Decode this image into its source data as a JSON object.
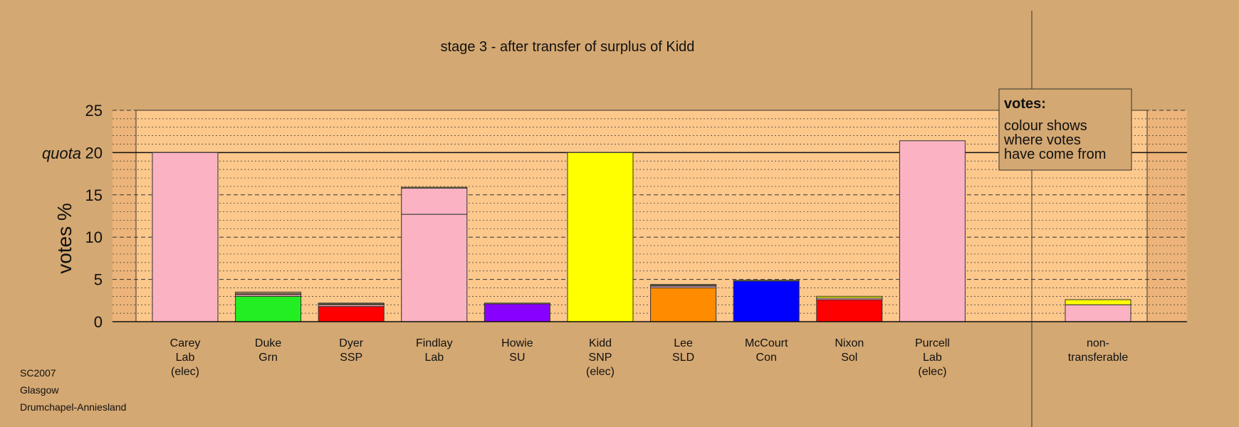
{
  "chart_data": {
    "type": "bar",
    "title": "stage 3 - after transfer of surplus of Kidd",
    "ylabel": "votes %",
    "ylim": [
      0,
      25
    ],
    "yticks": [
      0,
      5,
      10,
      15,
      20,
      25
    ],
    "quota": 20,
    "quota_label": "quota",
    "grid": "dashed every 5, dotted every 1",
    "legend_placement": "top-right",
    "candidates": [
      {
        "label": [
          "Carey",
          "Lab",
          "(elec)"
        ],
        "segments": [
          {
            "from": "Lab",
            "color": "#fbb3c3",
            "value": 20.0
          }
        ]
      },
      {
        "label": [
          "Duke",
          "Grn"
        ],
        "segments": [
          {
            "from": "Grn",
            "color": "#22ee22",
            "value": 3.0
          },
          {
            "from": "Lab",
            "color": "#fbb3c3",
            "value": 0.2
          },
          {
            "from": "SNP",
            "color": "#ffff00",
            "value": 0.1
          },
          {
            "from": "other",
            "color": "#c8a070",
            "value": 0.2
          }
        ]
      },
      {
        "label": [
          "Dyer",
          "SSP"
        ],
        "segments": [
          {
            "from": "SSP",
            "color": "#ff0000",
            "value": 1.8
          },
          {
            "from": "Lab",
            "color": "#fbb3c3",
            "value": 0.2
          },
          {
            "from": "SNP",
            "color": "#ffff00",
            "value": 0.1
          },
          {
            "from": "other",
            "color": "#c8a070",
            "value": 0.1
          }
        ]
      },
      {
        "label": [
          "Findlay",
          "Lab"
        ],
        "segments": [
          {
            "from": "Lab",
            "color": "#fbb3c3",
            "value": 12.7
          },
          {
            "from": "Lab transfer",
            "color": "#fbb3c3",
            "value": 3.1
          },
          {
            "from": "SNP",
            "color": "#ffff00",
            "value": 0.1
          }
        ]
      },
      {
        "label": [
          "Howie",
          "SU"
        ],
        "segments": [
          {
            "from": "SU",
            "color": "#8800ff",
            "value": 2.1
          },
          {
            "from": "SNP",
            "color": "#ffff00",
            "value": 0.1
          }
        ]
      },
      {
        "label": [
          "Kidd",
          "SNP",
          "(elec)"
        ],
        "segments": [
          {
            "from": "SNP",
            "color": "#ffff00",
            "value": 20.0
          }
        ]
      },
      {
        "label": [
          "Lee",
          "SLD"
        ],
        "segments": [
          {
            "from": "SLD",
            "color": "#ff8c00",
            "value": 4.0
          },
          {
            "from": "Lab",
            "color": "#fbb3c3",
            "value": 0.2
          },
          {
            "from": "SNP",
            "color": "#ffff00",
            "value": 0.1
          },
          {
            "from": "other",
            "color": "#c8a070",
            "value": 0.1
          }
        ]
      },
      {
        "label": [
          "McCourt",
          "Con"
        ],
        "segments": [
          {
            "from": "Con",
            "color": "#0000ff",
            "value": 4.8
          },
          {
            "from": "SNP",
            "color": "#ffff00",
            "value": 0.1
          }
        ]
      },
      {
        "label": [
          "Nixon",
          "Sol"
        ],
        "segments": [
          {
            "from": "Sol",
            "color": "#ff0000",
            "value": 2.6
          },
          {
            "from": "Lab",
            "color": "#fbb3c3",
            "value": 0.2
          },
          {
            "from": "SNP",
            "color": "#ffff00",
            "value": 0.2
          }
        ]
      },
      {
        "label": [
          "Purcell",
          "Lab",
          "(elec)"
        ],
        "segments": [
          {
            "from": "Lab",
            "color": "#fbb3c3",
            "value": 21.4
          }
        ]
      }
    ],
    "nontransferable": {
      "label": [
        "non-",
        "transferable"
      ],
      "segments": [
        {
          "from": "Lab",
          "color": "#fbb3c3",
          "value": 2.0
        },
        {
          "from": "SNP",
          "color": "#ffff00",
          "value": 0.6
        }
      ]
    },
    "legend": {
      "heading": "votes:",
      "lines": [
        "colour shows",
        "where votes",
        "have come from"
      ]
    }
  },
  "footer": {
    "line1": "SC2007",
    "line2": "Glasgow",
    "line3": "Drumchapel-Anniesland"
  },
  "colors": {
    "background": "#d4a872",
    "plot_area": "#fcc88c",
    "outer_band": "#ecb47a"
  }
}
